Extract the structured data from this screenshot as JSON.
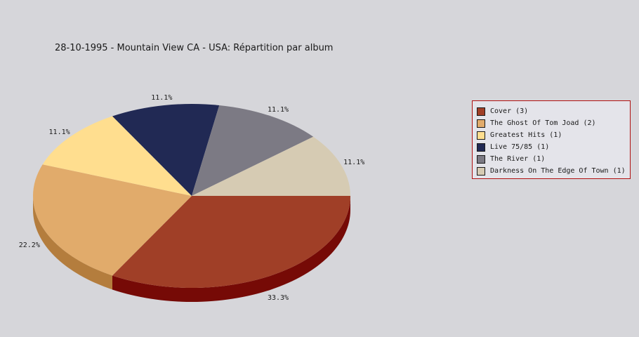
{
  "chart_data": {
    "type": "pie",
    "title": "28-10-1995 - Mountain View CA - USA:  Répartition par album",
    "slices": [
      {
        "label": "Cover (3)",
        "value": 33.3,
        "pct_label": "33.3%",
        "color": "#a03f27",
        "side_color": "#760a06"
      },
      {
        "label": "The Ghost Of Tom Joad (2)",
        "value": 22.2,
        "pct_label": "22.2%",
        "color": "#e1ab6b",
        "side_color": "#b47d3d"
      },
      {
        "label": "Greatest Hits (1)",
        "value": 11.1,
        "pct_label": "11.1%",
        "color": "#ffde8f",
        "side_color": "#cfae60"
      },
      {
        "label": "Live 75/85 (1)",
        "value": 11.1,
        "pct_label": "11.1%",
        "color": "#212954",
        "side_color": "#101535"
      },
      {
        "label": "The River (1)",
        "value": 11.1,
        "pct_label": "11.1%",
        "color": "#7c7a84",
        "side_color": "#55535c"
      },
      {
        "label": "Darkness On The Edge Of Town (1)",
        "value": 11.1,
        "pct_label": "11.1%",
        "color": "#d6cbb3",
        "side_color": "#a89d86"
      }
    ],
    "legend_position": "right"
  }
}
